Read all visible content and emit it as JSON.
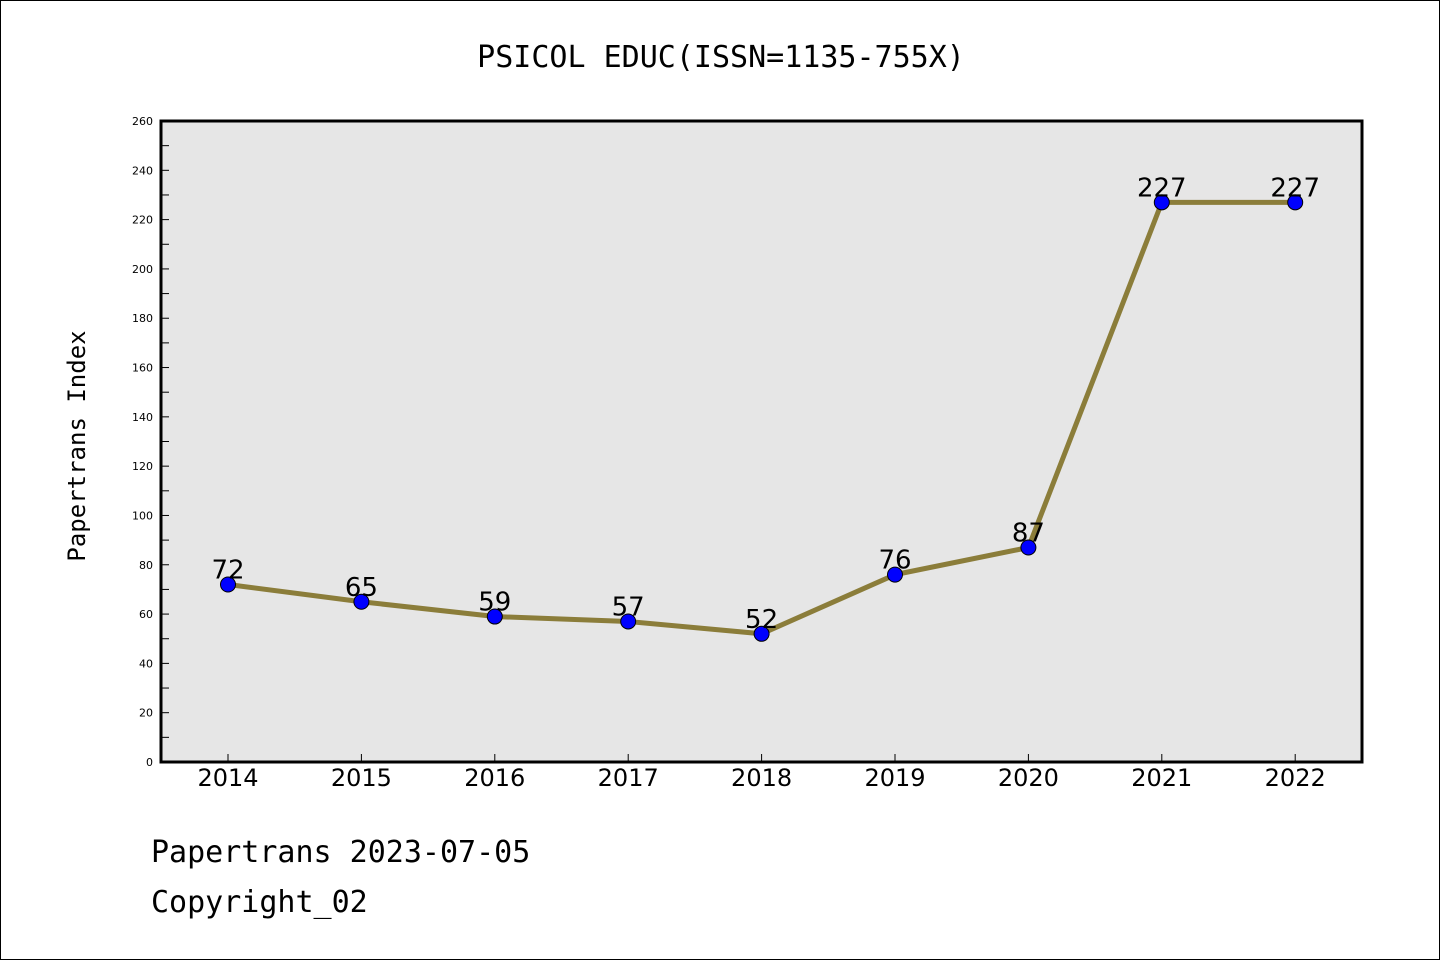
{
  "chart_data": {
    "type": "line",
    "title": "PSICOL EDUC(ISSN=1135-755X)",
    "xlabel": "",
    "ylabel": "Papertrans Index",
    "categories": [
      "2014",
      "2015",
      "2016",
      "2017",
      "2018",
      "2019",
      "2020",
      "2021",
      "2022"
    ],
    "values": [
      72,
      65,
      59,
      57,
      52,
      76,
      87,
      227,
      227
    ],
    "data_labels": [
      "72",
      "65",
      "59",
      "57",
      "52",
      "76",
      "87",
      "227",
      "227"
    ],
    "ylim": [
      0,
      260
    ],
    "yticks": [
      0,
      20,
      40,
      60,
      80,
      100,
      120,
      140,
      160,
      180,
      200,
      220,
      240,
      260
    ],
    "grid": false,
    "plot_background": "#e6e6e6",
    "line_color": "#8b7d3a",
    "marker_color": "#0000ff"
  },
  "footer": {
    "line1": "Papertrans 2023-07-05",
    "line2": "Copyright_02"
  }
}
